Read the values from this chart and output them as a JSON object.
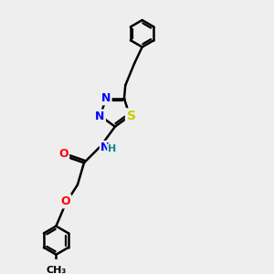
{
  "background_color": "#eeeeee",
  "bond_color": "#000000",
  "bond_width": 1.8,
  "atom_colors": {
    "N": "#0000ff",
    "S": "#cccc00",
    "O": "#ff0000",
    "H": "#008b8b",
    "C": "#000000"
  },
  "font_size": 9,
  "figsize": [
    3.0,
    3.0
  ],
  "dpi": 100
}
